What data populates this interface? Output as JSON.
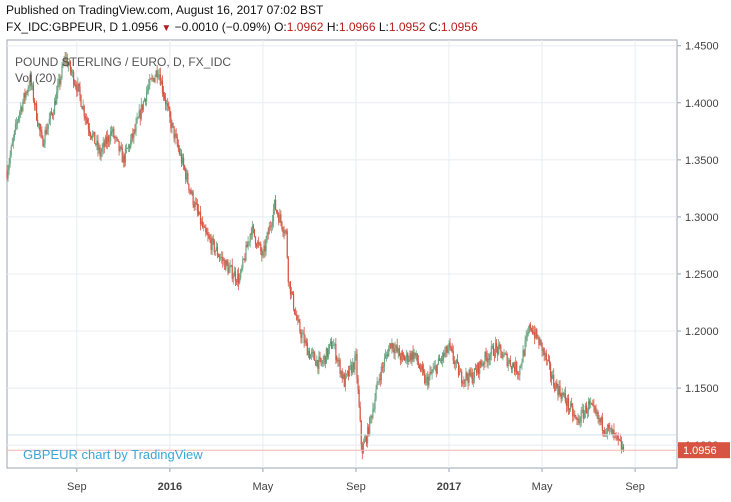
{
  "header": {
    "published": "Published on TradingView.com, August 16, 2017 07:02 BST",
    "symbol": "FX_IDC:GBPEUR, D",
    "last": "1.0956",
    "change": "−0.0010 (−0.09%)",
    "change_icon": "down-triangle-icon",
    "o_label": "O:",
    "o_value": "1.0962",
    "h_label": "H:",
    "h_value": "1.0966",
    "l_label": "L:",
    "l_value": "1.0952",
    "c_label": "C:",
    "c_value": "1.0956"
  },
  "chart_data": {
    "type": "line",
    "title": "POUND STERLING / EURO, D, FX_IDC",
    "subtitle": "Vol (20)",
    "watermark": "GBPEUR chart by TradingView",
    "price_label": "1.0956",
    "ylim": [
      1.08,
      1.455
    ],
    "y_ticks": [
      1.45,
      1.4,
      1.35,
      1.3,
      1.25,
      1.2,
      1.15,
      1.1
    ],
    "y_tick_labels": [
      "1.4500",
      "1.4000",
      "1.3500",
      "1.3000",
      "1.2500",
      "1.2000",
      "1.1500",
      "1.1000"
    ],
    "x_ticks": [
      {
        "month": 7,
        "label": "Sep"
      },
      {
        "month": 11,
        "label": "2016"
      },
      {
        "month": 15,
        "label": "May"
      },
      {
        "month": 19,
        "label": "Sep"
      },
      {
        "month": 23,
        "label": "2017"
      },
      {
        "month": 27,
        "label": "May"
      },
      {
        "month": 31,
        "label": "Sep"
      }
    ],
    "x_unit": "months since Jan 2015",
    "xlim": [
      4.0,
      32.8
    ],
    "series": [
      {
        "x": [
          4.0,
          4.5,
          5.0,
          5.5,
          6.0,
          6.5,
          7.0,
          7.5,
          8.0,
          8.5,
          9.0,
          9.5,
          10.0,
          10.5,
          11.0,
          11.5,
          12.0,
          12.5,
          13.0,
          13.5,
          14.0,
          14.5,
          15.0,
          15.5,
          16.0,
          16.1,
          16.5,
          17.0,
          17.5,
          18.0,
          18.5,
          19.0,
          19.25,
          19.5,
          20.0,
          20.5,
          21.0,
          21.5,
          22.0,
          22.5,
          23.0,
          23.5,
          24.0,
          24.5,
          25.0,
          25.5,
          26.0,
          26.5,
          27.0,
          27.5,
          28.0,
          28.5,
          29.0,
          29.5,
          30.0,
          30.5
        ],
        "values": [
          1.34,
          1.39,
          1.42,
          1.365,
          1.395,
          1.44,
          1.415,
          1.38,
          1.355,
          1.375,
          1.35,
          1.375,
          1.41,
          1.43,
          1.385,
          1.35,
          1.315,
          1.285,
          1.27,
          1.255,
          1.245,
          1.29,
          1.265,
          1.31,
          1.285,
          1.245,
          1.205,
          1.18,
          1.17,
          1.19,
          1.155,
          1.175,
          1.095,
          1.11,
          1.16,
          1.19,
          1.175,
          1.18,
          1.155,
          1.17,
          1.185,
          1.16,
          1.16,
          1.175,
          1.185,
          1.175,
          1.165,
          1.205,
          1.185,
          1.155,
          1.14,
          1.12,
          1.135,
          1.12,
          1.11,
          1.0956
        ]
      }
    ],
    "up_color": "#6ba583",
    "down_color": "#d75442",
    "grid": true
  }
}
